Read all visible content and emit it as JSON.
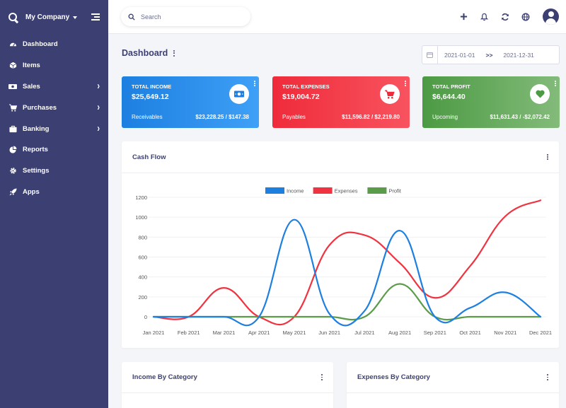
{
  "sidebar": {
    "company": "My Company",
    "items": [
      {
        "label": "Dashboard",
        "icon": "dashboard-gauge-icon",
        "has_submenu": false
      },
      {
        "label": "Items",
        "icon": "cube-icon",
        "has_submenu": false
      },
      {
        "label": "Sales",
        "icon": "money-bill-icon",
        "has_submenu": true
      },
      {
        "label": "Purchases",
        "icon": "shopping-cart-icon",
        "has_submenu": true
      },
      {
        "label": "Banking",
        "icon": "briefcase-icon",
        "has_submenu": true
      },
      {
        "label": "Reports",
        "icon": "pie-chart-icon",
        "has_submenu": false
      },
      {
        "label": "Settings",
        "icon": "gear-icon",
        "has_submenu": false
      },
      {
        "label": "Apps",
        "icon": "rocket-icon",
        "has_submenu": false
      }
    ]
  },
  "topbar": {
    "search_placeholder": "Search",
    "icons": [
      "plus-icon",
      "bell-icon",
      "refresh-icon",
      "globe-icon",
      "user-avatar-icon"
    ]
  },
  "page": {
    "title": "Dashboard",
    "date_from": "2021-01-01",
    "date_separator": ">>",
    "date_to": "2021-12-31"
  },
  "cards": {
    "income": {
      "label": "TOTAL INCOME",
      "amount": "$25,649.12",
      "sub_label": "Receivables",
      "sub_value": "$23,228.25 / $147.38",
      "icon": "money-bill-icon",
      "color": "#1d7fe0"
    },
    "expenses": {
      "label": "TOTAL EXPENSES",
      "amount": "$19,004.72",
      "sub_label": "Payables",
      "sub_value": "$11,596.82 / $2,219.80",
      "icon": "shopping-cart-icon",
      "color": "#ef2b3a"
    },
    "profit": {
      "label": "TOTAL PROFIT",
      "amount": "$6,644.40",
      "sub_label": "Upcoming",
      "sub_value": "$11,631.43 / -$2,072.42",
      "icon": "heart-icon",
      "color": "#4c9a43"
    }
  },
  "cashflow": {
    "title": "Cash Flow"
  },
  "income_by_category": {
    "title": "Income By Category"
  },
  "expenses_by_category": {
    "title": "Expenses By Category"
  },
  "chart_data": {
    "type": "line",
    "title": "Cash Flow",
    "x": [
      "Jan 2021",
      "Feb 2021",
      "Mar 2021",
      "Apr 2021",
      "May 2021",
      "Jun 2021",
      "Jul 2021",
      "Aug 2021",
      "Sep 2021",
      "Oct 2021",
      "Nov 2021",
      "Dec 2021"
    ],
    "yticks": [
      0,
      200,
      400,
      600,
      800,
      1000,
      1200
    ],
    "ylim": [
      0,
      1200
    ],
    "legend_position": "top-center",
    "grid": true,
    "series": [
      {
        "name": "Income",
        "color": "#1d7fe0",
        "values": [
          0,
          0,
          0,
          0,
          975,
          30,
          60,
          865,
          0,
          90,
          245,
          0
        ]
      },
      {
        "name": "Expenses",
        "color": "#ef3340",
        "values": [
          0,
          0,
          290,
          0,
          0,
          720,
          820,
          540,
          190,
          510,
          1010,
          1170
        ]
      },
      {
        "name": "Profit",
        "color": "#5b9c4a",
        "values": [
          0,
          0,
          0,
          0,
          0,
          0,
          0,
          330,
          0,
          0,
          0,
          0
        ]
      }
    ]
  }
}
